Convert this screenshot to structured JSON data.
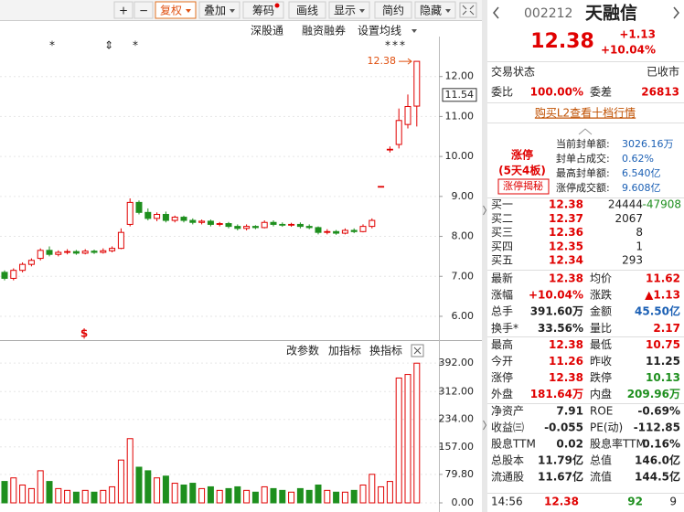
{
  "toolbar": [
    "+",
    "−",
    "复权",
    "叠加",
    "筹码",
    "画线",
    "显示",
    "简约",
    "隐藏"
  ],
  "chart_links": [
    "深股通",
    "融资融券",
    "设置均线"
  ],
  "indicator_buttons": [
    "改参数",
    "加指标",
    "换指标"
  ],
  "chart_data": [
    {
      "type": "candlestick",
      "open": [
        7.1,
        6.95,
        7.15,
        7.3,
        7.45,
        7.65,
        7.55,
        7.6,
        7.62,
        7.58,
        7.63,
        7.6,
        7.64,
        7.7,
        8.3,
        8.85,
        8.6,
        8.45,
        8.55,
        8.4,
        8.48,
        8.4,
        8.35,
        8.38,
        8.3,
        8.32,
        8.25,
        8.2,
        8.25,
        8.22,
        8.35,
        8.3,
        8.28,
        8.3,
        8.25,
        8.22,
        8.1,
        8.12,
        8.08,
        8.15,
        8.12,
        8.25,
        9.25,
        10.18,
        10.3,
        10.8,
        11.26
      ],
      "close": [
        6.95,
        7.15,
        7.3,
        7.4,
        7.65,
        7.55,
        7.6,
        7.62,
        7.58,
        7.63,
        7.6,
        7.64,
        7.7,
        8.1,
        8.85,
        8.6,
        8.45,
        8.55,
        8.4,
        8.48,
        8.4,
        8.35,
        8.38,
        8.3,
        8.32,
        8.25,
        8.2,
        8.25,
        8.22,
        8.35,
        8.3,
        8.28,
        8.3,
        8.25,
        8.22,
        8.1,
        8.12,
        8.08,
        8.15,
        8.12,
        8.25,
        8.4,
        9.25,
        10.18,
        10.9,
        11.25,
        12.38
      ],
      "high": [
        7.15,
        7.2,
        7.35,
        7.45,
        7.7,
        7.75,
        7.65,
        7.68,
        7.66,
        7.68,
        7.67,
        7.7,
        7.75,
        8.2,
        8.95,
        8.9,
        8.7,
        8.6,
        8.62,
        8.52,
        8.52,
        8.45,
        8.42,
        8.42,
        8.36,
        8.36,
        8.3,
        8.3,
        8.28,
        8.4,
        8.4,
        8.35,
        8.34,
        8.35,
        8.3,
        8.25,
        8.18,
        8.16,
        8.2,
        8.2,
        8.3,
        8.45,
        9.25,
        10.25,
        11.2,
        11.55,
        12.38
      ],
      "low": [
        6.9,
        6.9,
        7.1,
        7.25,
        7.4,
        7.5,
        7.5,
        7.55,
        7.54,
        7.55,
        7.56,
        7.57,
        7.6,
        7.68,
        8.25,
        8.55,
        8.4,
        8.38,
        8.35,
        8.35,
        8.35,
        8.3,
        8.3,
        8.25,
        8.25,
        8.2,
        8.15,
        8.15,
        8.18,
        8.2,
        8.25,
        8.24,
        8.24,
        8.2,
        8.18,
        8.05,
        8.05,
        8.04,
        8.05,
        8.08,
        8.1,
        8.2,
        9.25,
        10.1,
        10.2,
        10.7,
        10.75
      ],
      "up_color": "#e00000",
      "down_color": "#1e8f1e",
      "ylim": [
        5.45,
        13.0
      ],
      "yticks": [
        {
          "value": 12,
          "label": "12.00"
        },
        {
          "value": 11,
          "label": "11.00"
        },
        {
          "value": 10,
          "label": "10.00"
        },
        {
          "value": 9,
          "label": "9.00"
        },
        {
          "value": 8,
          "label": "8.00"
        },
        {
          "value": 7,
          "label": "7.00"
        },
        {
          "value": 6,
          "label": "6.00"
        }
      ],
      "max_label": {
        "value": 12.38,
        "label": "12.38"
      },
      "cursor_label": {
        "value": 11.54,
        "label": "11.54"
      },
      "grid": true
    },
    {
      "type": "bar",
      "values": [
        60,
        70,
        50,
        40,
        90,
        60,
        40,
        35,
        30,
        35,
        30,
        35,
        45,
        120,
        180,
        100,
        90,
        70,
        75,
        55,
        50,
        55,
        40,
        45,
        35,
        40,
        45,
        35,
        30,
        45,
        40,
        35,
        30,
        40,
        35,
        50,
        35,
        30,
        30,
        35,
        50,
        80,
        45,
        60,
        350,
        360,
        391.6
      ],
      "ylim": [
        0,
        405
      ],
      "yticks": [
        {
          "value": 392,
          "label": "392.00"
        },
        {
          "value": 312,
          "label": "312.00"
        },
        {
          "value": 234,
          "label": "234.00"
        },
        {
          "value": 157,
          "label": "157.00"
        },
        {
          "value": 79.8,
          "label": "79.80"
        },
        {
          "value": 0,
          "label": "0.00"
        }
      ],
      "grid": true
    }
  ],
  "quote_panel": {
    "code": "002212",
    "name": "天融信",
    "price": "12.38",
    "change": "+1.13",
    "change_pct": "+10.04%",
    "status": [
      "交易状态",
      "已收市"
    ],
    "order_ratio": [
      "委比",
      "100.00%",
      "委差",
      "26813"
    ],
    "l2_link": "购买L2查看十档行情",
    "limit": {
      "badge": "涨停",
      "streak": "(5天4板)",
      "reveal": "涨停揭秘",
      "items": [
        [
          "当前封单额:",
          "3026.16万"
        ],
        [
          "封单占成交:",
          "0.62%"
        ],
        [
          "最高封单额:",
          "6.540亿"
        ],
        [
          "涨停成交额:",
          "9.608亿"
        ]
      ]
    },
    "bids": [
      [
        "买一",
        "12.38",
        "24444",
        "-47908"
      ],
      [
        "买二",
        "12.37",
        "2067"
      ],
      [
        "买三",
        "12.36",
        "8"
      ],
      [
        "买四",
        "12.35",
        "1"
      ],
      [
        "买五",
        "12.34",
        "293"
      ]
    ],
    "stats": [
      [
        "最新",
        "12.38",
        "均价",
        "11.62"
      ],
      [
        "涨幅",
        "+10.04%",
        "涨跌",
        "▲1.13"
      ],
      [
        "总手",
        "391.60万",
        "金额",
        "45.50亿"
      ],
      [
        "换手*",
        "33.56%",
        "量比",
        "2.17"
      ],
      [
        "最高",
        "12.38",
        "最低",
        "10.75"
      ],
      [
        "今开",
        "11.26",
        "昨收",
        "11.25"
      ],
      [
        "涨停",
        "12.38",
        "跌停",
        "10.13"
      ],
      [
        "外盘",
        "181.64万",
        "内盘",
        "209.96万"
      ],
      [
        "净资产",
        "7.91",
        "ROE",
        "-0.69%"
      ],
      [
        "收益㈢",
        "-0.055",
        "PE(动)",
        "-112.85"
      ],
      [
        "股息TTM",
        "0.02",
        "股息率TTM",
        "0.16%"
      ],
      [
        "总股本",
        "11.79亿",
        "总值",
        "146.0亿"
      ],
      [
        "流通股",
        "11.67亿",
        "流值",
        "144.5亿"
      ]
    ],
    "footer": [
      "14:56",
      "12.38",
      "92",
      "9"
    ]
  }
}
